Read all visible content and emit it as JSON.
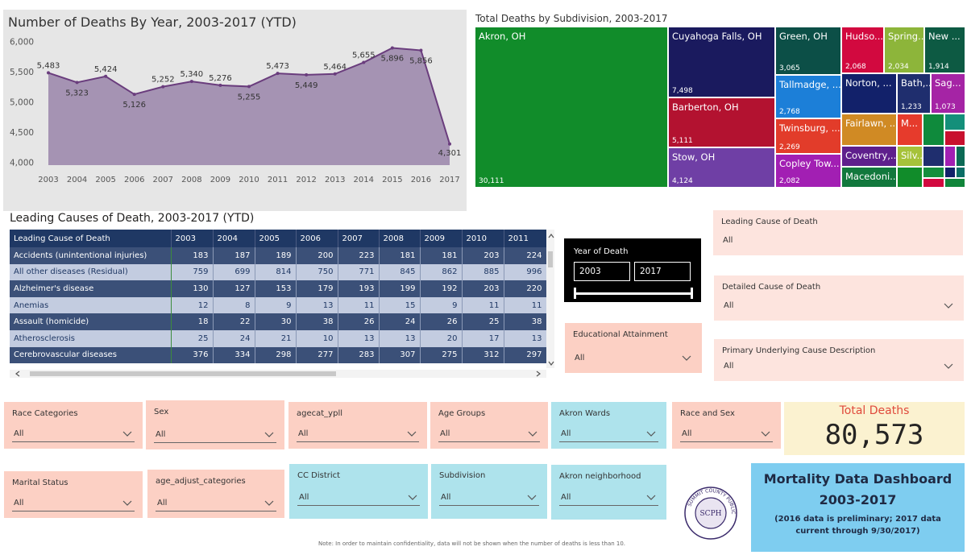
{
  "line_chart": {
    "title": "Number of Deaths By Year, 2003-2017 (YTD)",
    "fill_color": "#a593b3",
    "line_color": "#6a3d7d"
  },
  "chart_data": [
    {
      "type": "area",
      "title": "Number of Deaths By Year, 2003-2017 (YTD)",
      "categories": [
        "2003",
        "2004",
        "2005",
        "2006",
        "2007",
        "2008",
        "2009",
        "2010",
        "2011",
        "2012",
        "2013",
        "2014",
        "2015",
        "2016",
        "2017"
      ],
      "values": [
        5483,
        5323,
        5424,
        5126,
        5252,
        5340,
        5276,
        5255,
        5473,
        5449,
        5464,
        5655,
        5896,
        5856,
        4301
      ],
      "value_labels": [
        "5,483",
        "5,323",
        "5,424",
        "5,126",
        "5,252",
        "5,340",
        "5,276",
        "5,255",
        "5,473",
        "5,449",
        "5,464",
        "5,655",
        "5,896",
        "5,856",
        "4,301"
      ],
      "y_ticks": [
        "6,000",
        "5,500",
        "5,000",
        "4,500",
        "4,000"
      ],
      "ylim": [
        3950,
        6050
      ],
      "grid": false
    },
    {
      "type": "treemap",
      "title": "Total Deaths by Subdivision, 2003-2017",
      "nodes": [
        {
          "name": "Akron, OH",
          "value": 30111,
          "value_label": "30,111",
          "color": "#118c2a"
        },
        {
          "name": "Cuyahoga Falls, OH",
          "value": 7498,
          "value_label": "7,498",
          "color": "#1a1a5e"
        },
        {
          "name": "Barberton, OH",
          "value": 5111,
          "value_label": "5,111",
          "color": "#b31230"
        },
        {
          "name": "Stow, OH",
          "value": 4124,
          "value_label": "4,124",
          "color": "#6f3fa5"
        },
        {
          "name": "Green, OH",
          "value": 3065,
          "value_label": "3,065",
          "color": "#0c4f47"
        },
        {
          "name": "Tallmadge, ...",
          "value": 2768,
          "value_label": "2,768",
          "color": "#1c7fd8"
        },
        {
          "name": "Twinsburg, ...",
          "value": 2269,
          "value_label": "2,269",
          "color": "#e23c2a"
        },
        {
          "name": "Copley Tow...",
          "value": 2082,
          "value_label": "2,082",
          "color": "#a21fb3"
        },
        {
          "name": "Hudso...",
          "value": 2068,
          "value_label": "2,068",
          "color": "#d2093f"
        },
        {
          "name": "Spring...",
          "value": 2034,
          "value_label": "2,034",
          "color": "#8db53a"
        },
        {
          "name": "New ...",
          "value": 1914,
          "value_label": "1,914",
          "color": "#0d5a43"
        },
        {
          "name": "Norton, ...",
          "value": null,
          "value_label": "",
          "color": "#12216a"
        },
        {
          "name": "Bath,...",
          "value": 1233,
          "value_label": "1,233",
          "color": "#1f2e6e"
        },
        {
          "name": "Sag...",
          "value": 1073,
          "value_label": "1,073",
          "color": "#a524a5"
        },
        {
          "name": "Fairlawn, ...",
          "value": null,
          "value_label": "",
          "color": "#d08a24"
        },
        {
          "name": "M...",
          "value": null,
          "value_label": "",
          "color": "#e63b2c"
        },
        {
          "name": "Coventry,...",
          "value": null,
          "value_label": "",
          "color": "#5e1f8c"
        },
        {
          "name": "Silv...",
          "value": null,
          "value_label": "",
          "color": "#a6c23a"
        },
        {
          "name": "Macedoni...",
          "value": null,
          "value_label": "",
          "color": "#12783d"
        }
      ]
    }
  ],
  "treemap": {
    "title": "Total Deaths by Subdivision, 2003-2017",
    "small_cell_colors": [
      "#0f8a3c",
      "#148f7a",
      "#c8102e",
      "#1f2e6e",
      "#a21fb3",
      "#0c6a55",
      "#148f3c",
      "#d2093f",
      "#12216a",
      "#0a6e66",
      "#10853a",
      "#118c2a"
    ]
  },
  "table": {
    "title": "Leading Causes of Death, 2003-2017 (YTD)",
    "columns": [
      "Leading Cause of Death",
      "2003",
      "2004",
      "2005",
      "2006",
      "2007",
      "2008",
      "2009",
      "2010",
      "2011"
    ],
    "rows": [
      [
        "Accidents (unintentional injuries)",
        "183",
        "187",
        "189",
        "200",
        "223",
        "181",
        "181",
        "203",
        "224"
      ],
      [
        "All other diseases (Residual)",
        "759",
        "699",
        "814",
        "750",
        "771",
        "845",
        "862",
        "885",
        "996"
      ],
      [
        "Alzheimer's disease",
        "130",
        "127",
        "153",
        "179",
        "193",
        "199",
        "192",
        "203",
        "220"
      ],
      [
        "Anemias",
        "12",
        "8",
        "9",
        "13",
        "11",
        "15",
        "9",
        "11",
        "11"
      ],
      [
        "Assault (homicide)",
        "18",
        "22",
        "30",
        "38",
        "26",
        "24",
        "26",
        "25",
        "38"
      ],
      [
        "Atherosclerosis",
        "25",
        "24",
        "21",
        "10",
        "13",
        "13",
        "20",
        "17",
        "13"
      ],
      [
        "Cerebrovascular diseases",
        "376",
        "334",
        "298",
        "277",
        "283",
        "307",
        "275",
        "312",
        "297"
      ]
    ],
    "row_styles": [
      "dk",
      "lt",
      "dk",
      "lt",
      "dk",
      "lt",
      "dk"
    ]
  },
  "year_slicer": {
    "label": "Year of Death",
    "start": "2003",
    "end": "2017"
  },
  "slicers": {
    "leading_cause": {
      "label": "Leading Cause of Death",
      "value": "All"
    },
    "detailed_cause": {
      "label": "Detailed Cause of Death",
      "value": "All"
    },
    "educational_attainment": {
      "label": "Educational Attainment",
      "value": "All"
    },
    "primary_underlying": {
      "label": "Primary Underlying Cause Description",
      "value": "All"
    },
    "race_categories": {
      "label": "Race Categories",
      "value": "All"
    },
    "sex": {
      "label": "Sex",
      "value": "All"
    },
    "agecat_ypll": {
      "label": "agecat_ypll",
      "value": "All"
    },
    "age_groups": {
      "label": "Age Groups",
      "value": "All"
    },
    "akron_wards": {
      "label": "Akron Wards",
      "value": "All"
    },
    "race_and_sex": {
      "label": "Race and Sex",
      "value": "All"
    },
    "marital_status": {
      "label": "Marital Status",
      "value": "All"
    },
    "age_adjust": {
      "label": "age_adjust_categories",
      "value": "All"
    },
    "cc_district": {
      "label": "CC District",
      "value": "All"
    },
    "subdivision": {
      "label": "Subdivision",
      "value": "All"
    },
    "akron_neighborhood": {
      "label": "Akron neighborhood",
      "value": "All"
    }
  },
  "kpi": {
    "label": "Total Deaths",
    "value": "80,573"
  },
  "card": {
    "title_line1": "Mortality Data Dashboard",
    "title_line2": "2003-2017",
    "subtitle": "(2016 data is preliminary; 2017 data current through 9/30/2017)"
  },
  "logo": {
    "ring_text": "SUMMIT COUNTY PUBLIC HEALTH",
    "monogram": "SCPH"
  },
  "note": "Note: In order to maintain confidentiality, data will not be shown when the number of deaths is less than 10.",
  "icons": {
    "dropdown": "chevron-down-icon",
    "scroll_up": "chevron-up-icon",
    "scroll_down": "chevron-down-icon",
    "scroll_left": "chevron-left-icon",
    "scroll_right": "chevron-right-icon"
  }
}
